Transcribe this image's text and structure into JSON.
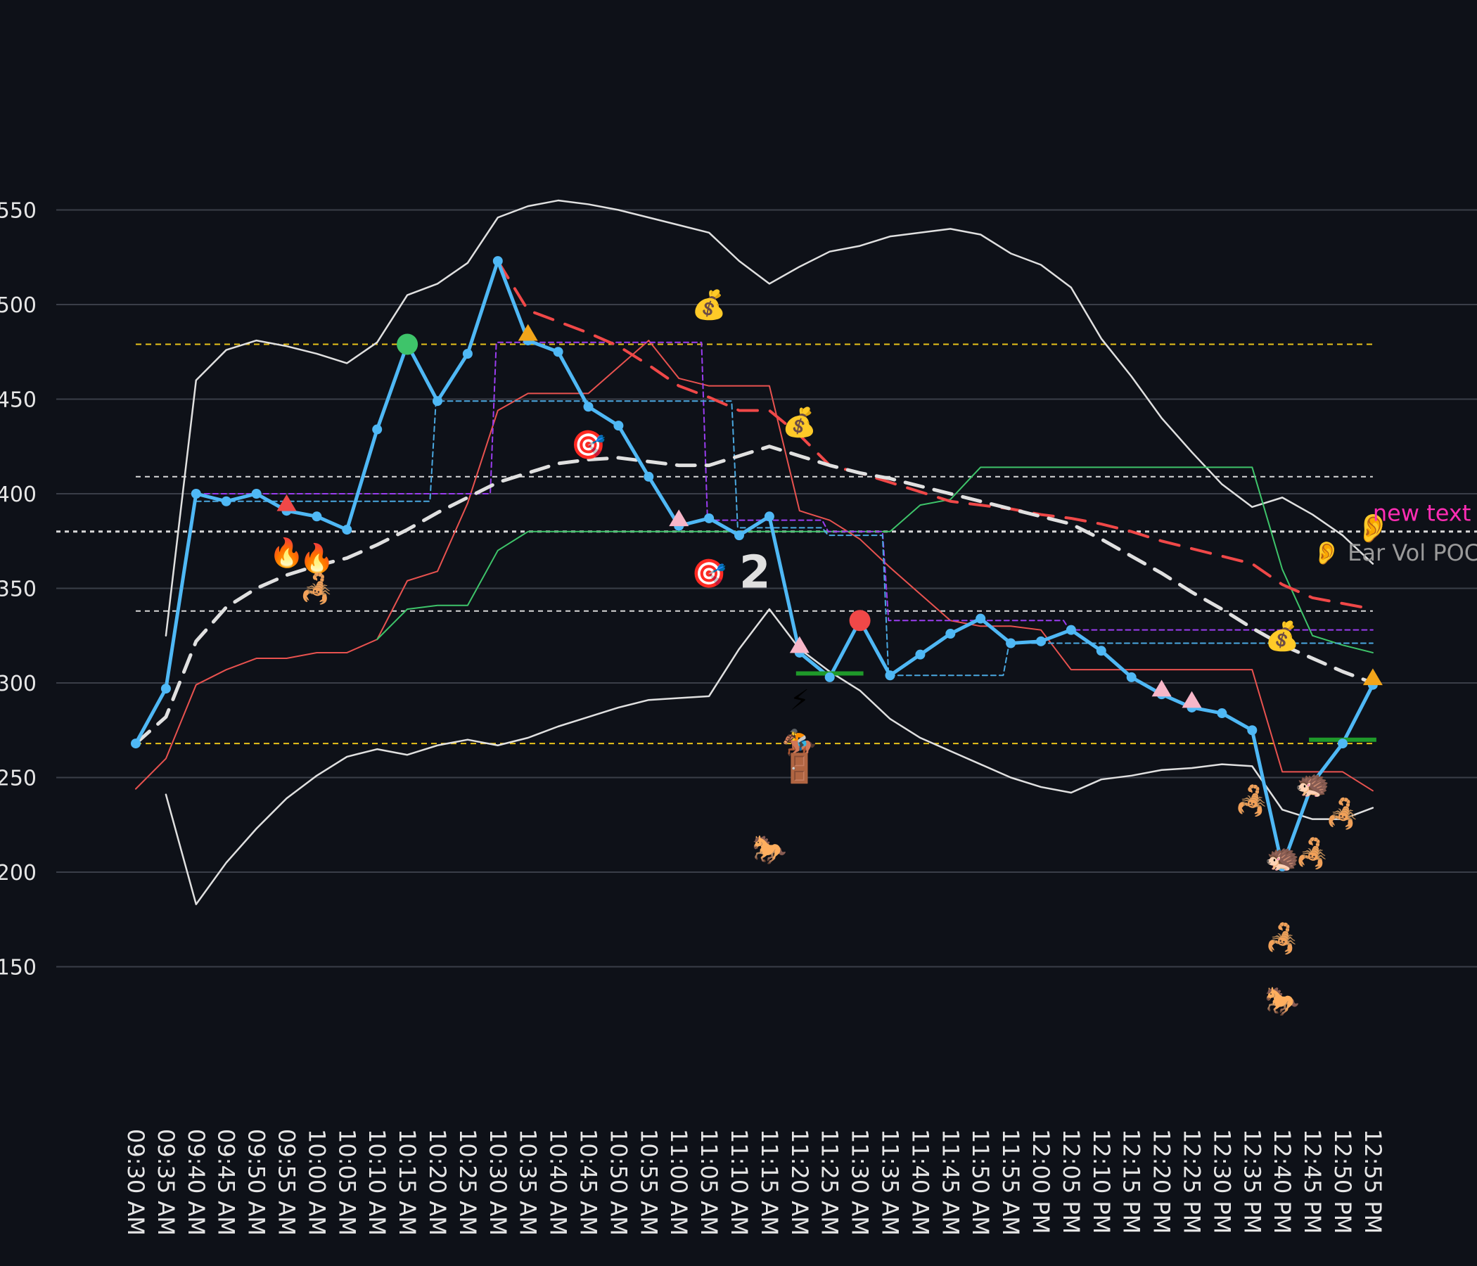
{
  "colors": {
    "background": "#0e1118",
    "grid": "#3a3e48",
    "price": "#4fb8f5",
    "band": "#e0e0e0",
    "vwap": "#e0e0e0",
    "red_line": "#e8524f",
    "green_line": "#3ec46a",
    "purple_dash": "#9a3df0",
    "blue_dash": "#4aa8e0",
    "red_dash": "#f04848",
    "yellow_dash": "#e8c21a",
    "pink_marker": "#f7b6c8",
    "orange_marker": "#f2a51a",
    "annotation_pink": "#ff2db4",
    "annotation_gray": "#9a9a9a"
  },
  "chart_data": {
    "type": "line",
    "ylim": [
      120,
      590
    ],
    "y_ticks": [
      150,
      200,
      250,
      300,
      350,
      400,
      450,
      500,
      550
    ],
    "y_tick_labels": [
      "150",
      "200",
      "250",
      "300",
      "350",
      "400",
      "450",
      "500",
      "550"
    ],
    "grid": "horizontal",
    "x": [
      "09:30 AM",
      "09:35 AM",
      "09:40 AM",
      "09:45 AM",
      "09:50 AM",
      "09:55 AM",
      "10:00 AM",
      "10:05 AM",
      "10:10 AM",
      "10:15 AM",
      "10:20 AM",
      "10:25 AM",
      "10:30 AM",
      "10:35 AM",
      "10:40 AM",
      "10:45 AM",
      "10:50 AM",
      "10:55 AM",
      "11:00 AM",
      "11:05 AM",
      "11:10 AM",
      "11:15 AM",
      "11:20 AM",
      "11:25 AM",
      "11:30 AM",
      "11:35 AM",
      "11:40 AM",
      "11:45 AM",
      "11:50 AM",
      "11:55 AM",
      "12:00 PM",
      "12:05 PM",
      "12:10 PM",
      "12:15 PM",
      "12:20 PM",
      "12:25 PM",
      "12:30 PM",
      "12:35 PM",
      "12:40 PM",
      "12:45 PM",
      "12:50 PM",
      "12:55 PM"
    ],
    "series": [
      {
        "style": "price",
        "values": [
          268,
          297,
          400,
          396,
          400,
          391,
          388,
          381,
          434,
          479,
          449,
          474,
          523,
          481,
          475,
          446,
          436,
          409,
          383,
          387,
          378,
          388,
          316,
          303,
          333,
          304,
          315,
          326,
          334,
          321,
          322,
          328,
          317,
          303,
          294,
          287,
          284,
          275,
          203,
          247,
          268,
          299
        ]
      },
      {
        "style": "upper_band",
        "values": [
          null,
          325,
          460,
          476,
          481,
          478,
          474,
          469,
          480,
          505,
          511,
          522,
          546,
          552,
          555,
          553,
          550,
          546,
          542,
          538,
          523,
          511,
          520,
          528,
          531,
          536,
          538,
          540,
          537,
          527,
          521,
          509,
          482,
          462,
          440,
          422,
          405,
          393,
          398,
          389,
          378,
          363
        ]
      },
      {
        "style": "lower_band",
        "values": [
          null,
          241,
          183,
          205,
          223,
          239,
          251,
          261,
          265,
          262,
          267,
          270,
          267,
          271,
          277,
          282,
          287,
          291,
          292,
          293,
          318,
          339,
          318,
          306,
          296,
          281,
          271,
          264,
          257,
          250,
          245,
          242,
          249,
          251,
          254,
          255,
          257,
          256,
          233,
          228,
          228,
          234
        ]
      },
      {
        "style": "vwap",
        "values": [
          268,
          282,
          322,
          340,
          350,
          357,
          362,
          366,
          373,
          381,
          390,
          398,
          406,
          411,
          416,
          418,
          419,
          417,
          415,
          415,
          420,
          425,
          420,
          415,
          411,
          408,
          404,
          400,
          396,
          392,
          388,
          384,
          376,
          367,
          358,
          348,
          339,
          329,
          320,
          313,
          306,
          300
        ]
      },
      {
        "style": "red_line",
        "values": [
          244,
          260,
          299,
          307,
          313,
          313,
          316,
          316,
          323,
          354,
          359,
          395,
          444,
          453,
          453,
          453,
          467,
          481,
          461,
          457,
          457,
          457,
          391,
          386,
          376,
          361,
          347,
          333,
          330,
          330,
          328,
          307,
          307,
          307,
          307,
          307,
          307,
          307,
          253,
          253,
          253,
          243
        ]
      },
      {
        "style": "green_line",
        "values": [
          null,
          null,
          null,
          null,
          null,
          null,
          null,
          null,
          323,
          339,
          341,
          341,
          370,
          380,
          380,
          380,
          380,
          380,
          380,
          380,
          380,
          380,
          380,
          380,
          380,
          380,
          394,
          397,
          414,
          414,
          414,
          414,
          414,
          414,
          414,
          414,
          414,
          414,
          360,
          325,
          320,
          316
        ]
      },
      {
        "style": "purple_dash",
        "values": [
          null,
          null,
          400,
          400,
          400,
          400,
          400,
          400,
          400,
          400,
          400,
          400,
          480,
          480,
          480,
          480,
          480,
          480,
          480,
          386,
          386,
          386,
          386,
          380,
          380,
          333,
          333,
          333,
          333,
          333,
          333,
          328,
          328,
          328,
          328,
          328,
          328,
          328,
          328,
          328,
          328,
          328
        ]
      },
      {
        "style": "blue_dash",
        "values": [
          null,
          null,
          396,
          396,
          396,
          396,
          396,
          396,
          396,
          396,
          449,
          449,
          449,
          449,
          449,
          449,
          449,
          449,
          449,
          449,
          382,
          382,
          382,
          378,
          378,
          304,
          304,
          304,
          304,
          321,
          321,
          321,
          321,
          321,
          321,
          321,
          321,
          321,
          321,
          321,
          321,
          321
        ]
      },
      {
        "style": "red_dash",
        "values": [
          null,
          null,
          null,
          null,
          null,
          null,
          null,
          null,
          null,
          null,
          null,
          null,
          523,
          497,
          491,
          485,
          478,
          468,
          457,
          451,
          444,
          444,
          431,
          415,
          411,
          406,
          401,
          396,
          394,
          392,
          389,
          387,
          384,
          380,
          375,
          371,
          367,
          363,
          352,
          345,
          342,
          339
        ]
      }
    ],
    "horizontal_lines": [
      {
        "value": 479,
        "style": "yellow_dash"
      },
      {
        "value": 268,
        "style": "yellow_dash"
      },
      {
        "value": 409,
        "style": "white_dash"
      },
      {
        "value": 380,
        "style": "white_dash_bold"
      },
      {
        "value": 338,
        "style": "white_dash"
      }
    ],
    "markers": [
      {
        "x": "10:15 AM",
        "y": 479,
        "shape": "circle",
        "color": "green_line"
      },
      {
        "x": "11:30 AM",
        "y": 333,
        "shape": "circle",
        "color": "red_dash"
      },
      {
        "x": "09:55 AM",
        "y": 395,
        "shape": "triangle",
        "color": "red_dash"
      },
      {
        "x": "12:40 PM",
        "y": 207,
        "shape": "triangle",
        "color": "red_dash"
      },
      {
        "x": "10:35 AM",
        "y": 485,
        "shape": "triangle",
        "color": "orange_marker"
      },
      {
        "x": "12:55 PM",
        "y": 303,
        "shape": "triangle",
        "color": "orange_marker"
      },
      {
        "x": "11:00 AM",
        "y": 387,
        "shape": "triangle",
        "color": "pink_marker"
      },
      {
        "x": "11:20 AM",
        "y": 320,
        "shape": "triangle",
        "color": "pink_marker"
      },
      {
        "x": "12:20 PM",
        "y": 297,
        "shape": "triangle",
        "color": "pink_marker"
      },
      {
        "x": "12:25 PM",
        "y": 291,
        "shape": "triangle",
        "color": "pink_marker"
      }
    ],
    "green_bars": [
      {
        "x_from": "11:20 AM",
        "x_to": "11:30 AM",
        "y": 305
      },
      {
        "x_from": "12:45 PM",
        "x_to": "12:55 PM",
        "y": 270
      }
    ],
    "emojis": [
      {
        "x": "11:05 AM",
        "y": 500,
        "glyph": "💰"
      },
      {
        "x": "11:20 AM",
        "y": 438,
        "glyph": "💰"
      },
      {
        "x": "12:40 PM",
        "y": 325,
        "glyph": "💰"
      },
      {
        "x": "10:45 AM",
        "y": 426,
        "glyph": "🎯"
      },
      {
        "x": "11:05 AM",
        "y": 358,
        "glyph": "🎯"
      },
      {
        "x": "09:55 AM",
        "y": 369,
        "glyph": "🔥"
      },
      {
        "x": "10:00 AM",
        "y": 366,
        "glyph": "🔥"
      },
      {
        "x": "10:00 AM",
        "y": 350,
        "glyph": "🦂"
      },
      {
        "x": "12:35 PM",
        "y": 238,
        "glyph": "🦂"
      },
      {
        "x": "12:45 PM",
        "y": 210,
        "glyph": "🦂"
      },
      {
        "x": "12:50 PM",
        "y": 231,
        "glyph": "🦂"
      },
      {
        "x": "12:40 PM",
        "y": 165,
        "glyph": "🦂"
      },
      {
        "x": "11:20 AM",
        "y": 291,
        "glyph": "⚡"
      },
      {
        "x": "11:20 AM",
        "y": 268,
        "glyph": "🏇"
      },
      {
        "x": "11:20 AM",
        "y": 255,
        "glyph": "🚪"
      },
      {
        "x": "11:15 AM",
        "y": 212,
        "glyph": "🐎"
      },
      {
        "x": "12:40 PM",
        "y": 132,
        "glyph": "🐎"
      },
      {
        "x": "12:45 PM",
        "y": 247,
        "glyph": "🦔"
      },
      {
        "x": "12:40 PM",
        "y": 208,
        "glyph": "🦔"
      },
      {
        "x": "12:55 PM",
        "y": 382,
        "glyph": "👂"
      }
    ],
    "annotations": [
      {
        "x": "12:55 PM",
        "y": 390,
        "text": "new text",
        "color": "annotation_pink"
      },
      {
        "x": "12:45 PM",
        "y": 369,
        "text": "👂 Ear Vol POC",
        "color": "annotation_gray"
      },
      {
        "x": "11:10 AM",
        "y": 359,
        "text": "2",
        "color": "band"
      }
    ]
  }
}
